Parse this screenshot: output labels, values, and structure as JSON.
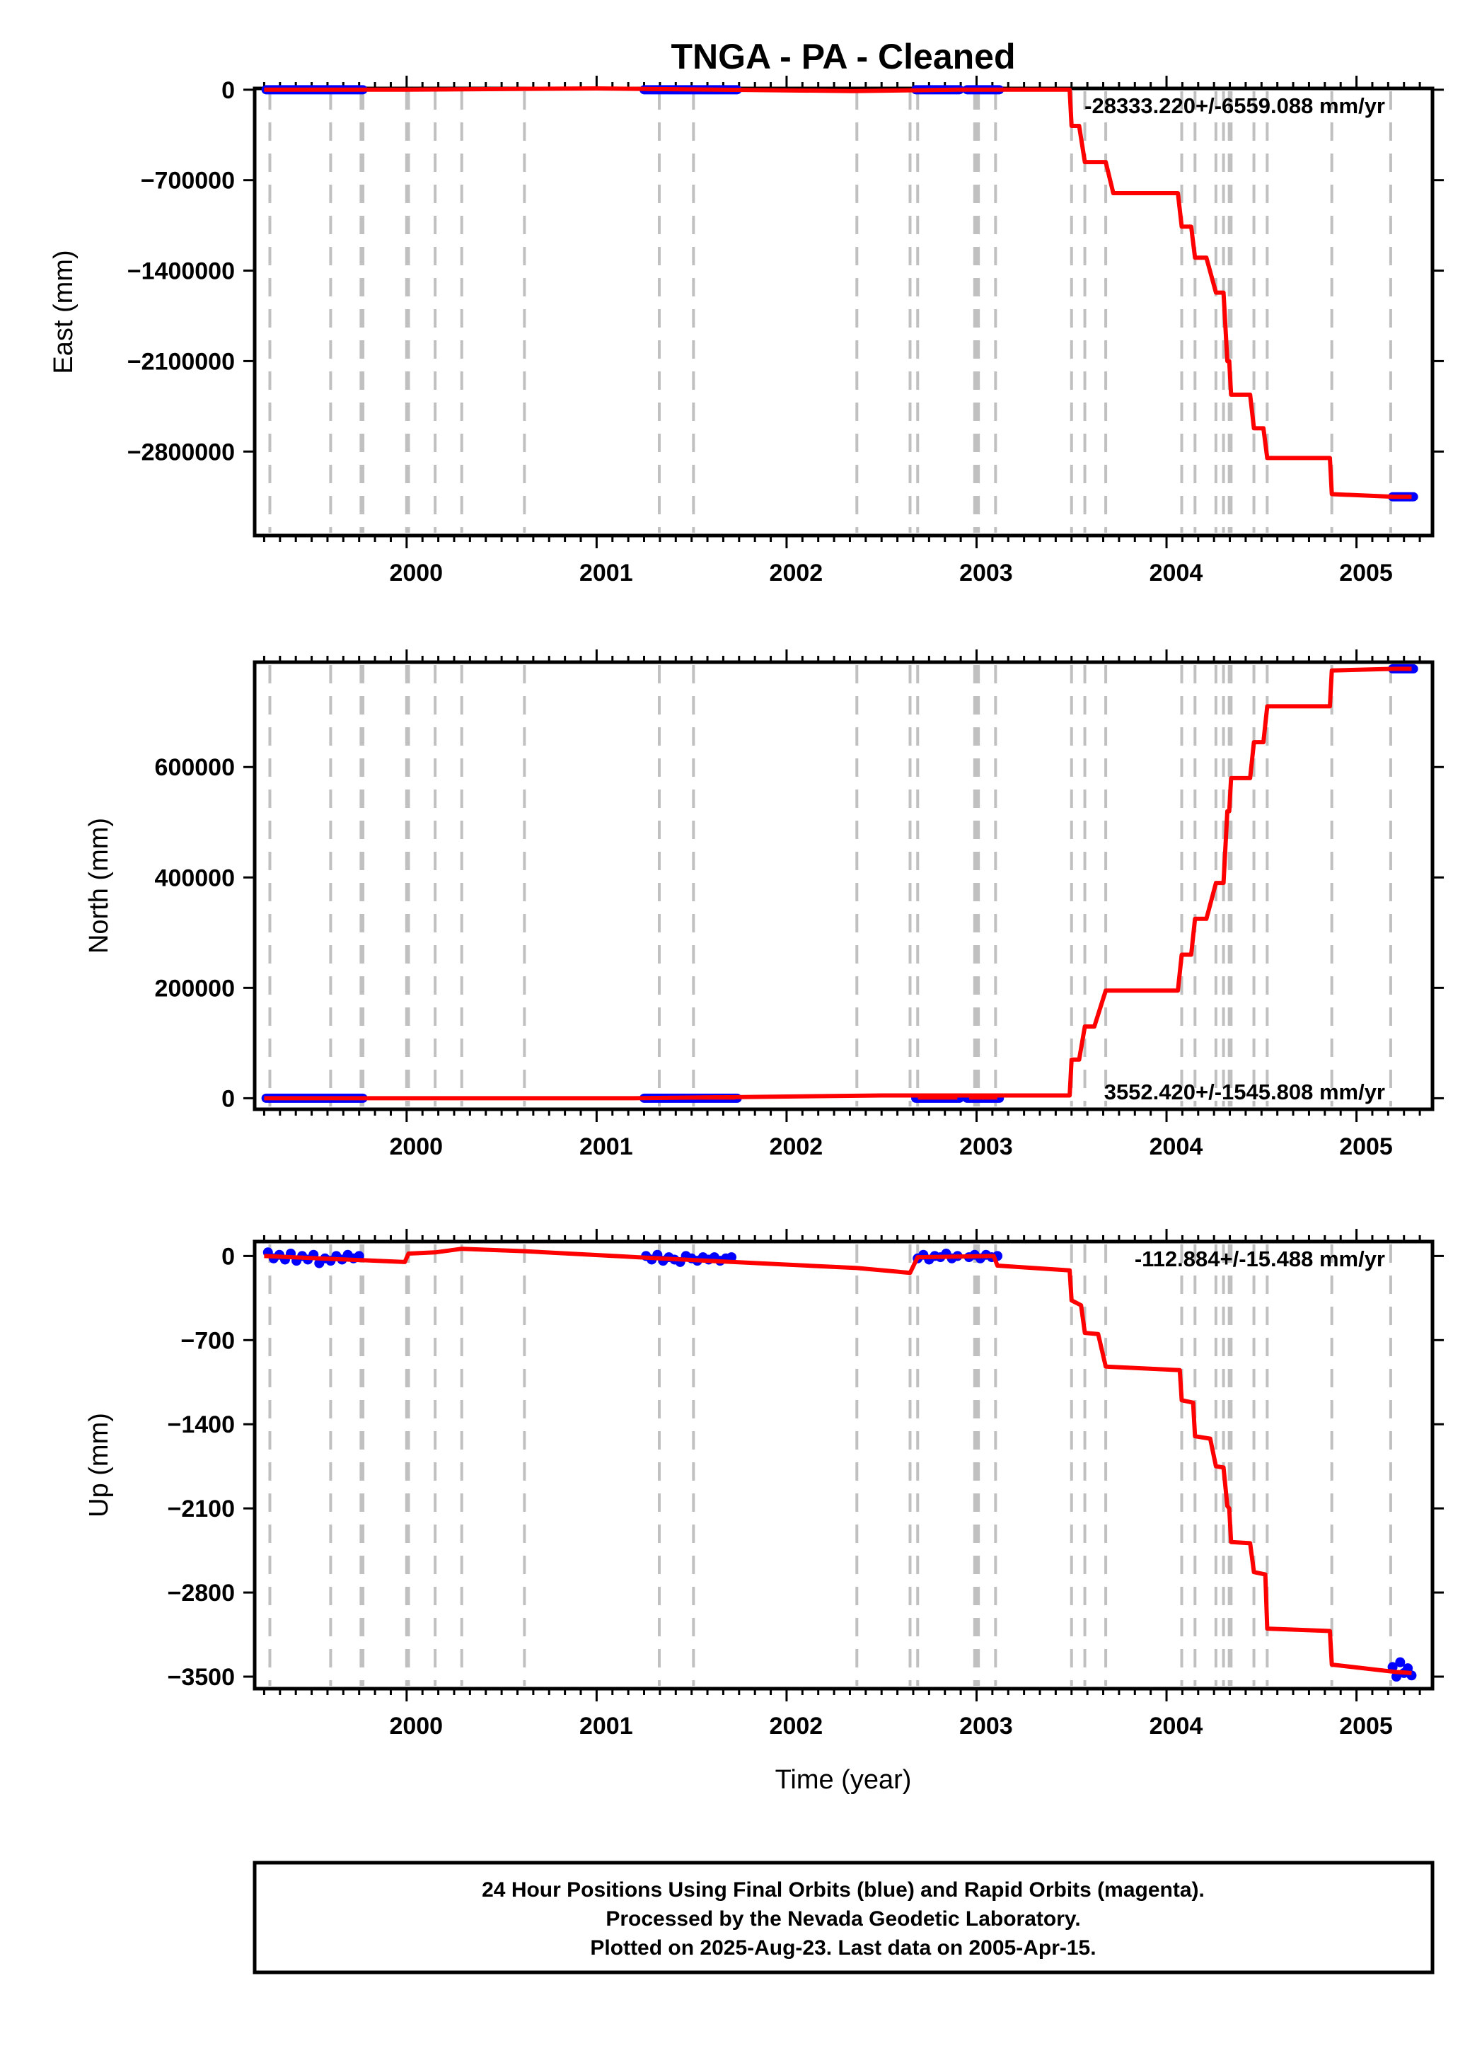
{
  "title": "TNGA  - PA - Cleaned",
  "xlabel": "Time (year)",
  "footer": [
    "24 Hour Positions Using Final Orbits (blue) and Rapid Orbits (magenta).",
    "Processed by the Nevada Geodetic Laboratory.",
    "Plotted on 2025-Aug-23. Last data on 2005-Apr-15."
  ],
  "colors": {
    "model_line": "#ff0000",
    "final_orbits": "#0000ff",
    "rapid_orbits": "#ff00ff",
    "steps": "#c0c0c0",
    "frame": "#000000"
  },
  "chart_data": [
    {
      "type": "line",
      "ylabel": "East (mm)",
      "rate_text": "-28333.220+/-6559.088 mm/yr",
      "xlim": [
        1999.2,
        2005.4
      ],
      "ylim": [
        -3450000,
        10000
      ],
      "yticks": [
        0,
        -700000,
        -1400000,
        -2100000,
        -2800000
      ],
      "ytick_labels": [
        "0",
        "−700000",
        "−1400000",
        "−2100000",
        "−2800000"
      ],
      "xticks": [
        2000,
        2001,
        2002,
        2003,
        2004,
        2005
      ],
      "grid": false,
      "step_epochs": [
        1999.28,
        1999.6,
        1999.76,
        1999.77,
        2000.0,
        2000.01,
        2000.15,
        2000.29,
        2000.62,
        2001.33,
        2001.51,
        2002.37,
        2002.65,
        2002.69,
        2002.99,
        2003.0,
        2003.01,
        2003.1,
        2003.5,
        2003.57,
        2003.68,
        2004.08,
        2004.15,
        2004.26,
        2004.3,
        2004.33,
        2004.34,
        2004.46,
        2004.53,
        2004.87,
        2005.18
      ],
      "series": [
        {
          "role": "model",
          "x": [
            1999.25,
            2000.0,
            2001.0,
            2002.35,
            2002.9,
            2003.3,
            2003.49,
            2003.5,
            2003.54,
            2003.57,
            2003.61,
            2003.68,
            2003.72,
            2004.06,
            2004.08,
            2004.13,
            2004.15,
            2004.21,
            2004.26,
            2004.29,
            2004.3,
            2004.32,
            2004.33,
            2004.34,
            2004.36,
            2004.44,
            2004.46,
            2004.51,
            2004.53,
            2004.86,
            2004.87,
            2005.2,
            2005.29
          ],
          "y": [
            0,
            0,
            10000,
            -10000,
            0,
            0,
            0,
            -280000,
            -280000,
            -560000,
            -560000,
            -560000,
            -800000,
            -800000,
            -1060000,
            -1060000,
            -1300000,
            -1300000,
            -1570000,
            -1570000,
            -1570000,
            -2100000,
            -2100000,
            -2360000,
            -2360000,
            -2360000,
            -2620000,
            -2620000,
            -2850000,
            -2850000,
            -3130000,
            -3150000,
            -3150000
          ]
        },
        {
          "role": "final",
          "segments": [
            [
              1999.26,
              1999.77,
              0
            ],
            [
              2001.25,
              2001.74,
              0
            ],
            [
              2002.68,
              2002.91,
              0
            ],
            [
              2002.95,
              2003.12,
              0
            ],
            [
              2005.19,
              2005.3,
              -3150000
            ]
          ]
        }
      ]
    },
    {
      "type": "line",
      "ylabel": "North (mm)",
      "rate_text": "3552.420+/-1545.808 mm/yr",
      "xlim": [
        1999.2,
        2005.4
      ],
      "ylim": [
        -20000,
        790000
      ],
      "yticks": [
        0,
        200000,
        400000,
        600000
      ],
      "ytick_labels": [
        "0",
        "200000",
        "400000",
        "600000"
      ],
      "xticks": [
        2000,
        2001,
        2002,
        2003,
        2004,
        2005
      ],
      "grid": false,
      "step_epochs": [
        1999.28,
        1999.6,
        1999.76,
        1999.77,
        2000.0,
        2000.01,
        2000.15,
        2000.29,
        2000.62,
        2001.33,
        2001.51,
        2002.37,
        2002.65,
        2002.69,
        2002.99,
        2003.0,
        2003.01,
        2003.1,
        2003.5,
        2003.57,
        2003.68,
        2004.08,
        2004.15,
        2004.26,
        2004.3,
        2004.33,
        2004.34,
        2004.46,
        2004.53,
        2004.87,
        2005.18
      ],
      "series": [
        {
          "role": "model",
          "x": [
            1999.25,
            2000.5,
            2001.2,
            2002.5,
            2003.3,
            2003.49,
            2003.5,
            2003.54,
            2003.57,
            2003.62,
            2003.68,
            2003.72,
            2004.06,
            2004.08,
            2004.13,
            2004.15,
            2004.21,
            2004.26,
            2004.29,
            2004.3,
            2004.32,
            2004.33,
            2004.34,
            2004.38,
            2004.44,
            2004.46,
            2004.51,
            2004.53,
            2004.86,
            2004.87,
            2005.2,
            2005.29
          ],
          "y": [
            0,
            0,
            0,
            5000,
            5000,
            5000,
            70000,
            70000,
            130000,
            130000,
            195000,
            195000,
            195000,
            260000,
            260000,
            325000,
            325000,
            390000,
            390000,
            390000,
            520000,
            520000,
            580000,
            580000,
            580000,
            645000,
            645000,
            710000,
            710000,
            775000,
            778000,
            778000
          ]
        },
        {
          "role": "final",
          "segments": [
            [
              1999.26,
              1999.77,
              0
            ],
            [
              2001.25,
              2001.74,
              0
            ],
            [
              2002.68,
              2002.91,
              0
            ],
            [
              2002.95,
              2003.12,
              0
            ],
            [
              2005.19,
              2005.3,
              778000
            ]
          ]
        }
      ]
    },
    {
      "type": "line",
      "ylabel": "Up (mm)",
      "rate_text": "-112.884+/-15.488 mm/yr",
      "xlim": [
        1999.2,
        2005.4
      ],
      "ylim": [
        -3600,
        120
      ],
      "yticks": [
        0,
        -700,
        -1400,
        -2100,
        -2800,
        -3500
      ],
      "ytick_labels": [
        "0",
        "−700",
        "−1400",
        "−2100",
        "−2800",
        "−3500"
      ],
      "xticks": [
        2000,
        2001,
        2002,
        2003,
        2004,
        2005
      ],
      "grid": false,
      "step_epochs": [
        1999.28,
        1999.6,
        1999.76,
        1999.77,
        2000.0,
        2000.01,
        2000.15,
        2000.29,
        2000.62,
        2001.33,
        2001.51,
        2002.37,
        2002.65,
        2002.69,
        2002.99,
        2003.0,
        2003.01,
        2003.1,
        2003.5,
        2003.57,
        2003.68,
        2004.08,
        2004.15,
        2004.26,
        2004.3,
        2004.33,
        2004.34,
        2004.46,
        2004.53,
        2004.87,
        2005.18
      ],
      "series": [
        {
          "role": "model",
          "x": [
            1999.25,
            1999.99,
            2000.01,
            2000.15,
            2000.29,
            2000.62,
            2001.33,
            2002.37,
            2002.65,
            2002.69,
            2003.09,
            2003.11,
            2003.49,
            2003.5,
            2003.55,
            2003.57,
            2003.64,
            2003.68,
            2004.07,
            2004.08,
            2004.14,
            2004.15,
            2004.23,
            2004.26,
            2004.3,
            2004.32,
            2004.33,
            2004.34,
            2004.44,
            2004.46,
            2004.52,
            2004.53,
            2004.86,
            2004.87,
            2005.2,
            2005.29
          ],
          "y": [
            0,
            -50,
            20,
            30,
            60,
            40,
            -20,
            -100,
            -140,
            -10,
            0,
            -80,
            -120,
            -370,
            -410,
            -640,
            -650,
            -920,
            -950,
            -1200,
            -1220,
            -1500,
            -1520,
            -1750,
            -1760,
            -2080,
            -2100,
            -2380,
            -2390,
            -2630,
            -2650,
            -3100,
            -3120,
            -3400,
            -3460,
            -3470
          ]
        },
        {
          "role": "final_points",
          "x": [
            1999.27,
            1999.3,
            1999.33,
            1999.36,
            1999.39,
            1999.42,
            1999.45,
            1999.48,
            1999.51,
            1999.54,
            1999.57,
            1999.6,
            1999.63,
            1999.66,
            1999.69,
            1999.72,
            1999.75,
            2001.26,
            2001.29,
            2001.32,
            2001.35,
            2001.38,
            2001.41,
            2001.44,
            2001.47,
            2001.5,
            2001.53,
            2001.56,
            2001.59,
            2001.62,
            2001.65,
            2001.68,
            2001.71,
            2002.69,
            2002.72,
            2002.75,
            2002.78,
            2002.81,
            2002.84,
            2002.87,
            2002.9,
            2002.96,
            2002.99,
            2003.02,
            2003.05,
            2003.08,
            2003.11,
            2005.19,
            2005.21,
            2005.23,
            2005.25,
            2005.27,
            2005.29
          ],
          "y": [
            30,
            -20,
            10,
            -30,
            20,
            -40,
            0,
            -30,
            10,
            -60,
            -20,
            -40,
            0,
            -30,
            10,
            -20,
            0,
            0,
            -30,
            10,
            -40,
            -10,
            -30,
            -50,
            0,
            -20,
            -40,
            -10,
            -30,
            -10,
            -40,
            -20,
            -10,
            -20,
            10,
            -30,
            0,
            -10,
            20,
            -20,
            0,
            -10,
            10,
            -20,
            10,
            -10,
            0,
            -3420,
            -3500,
            -3380,
            -3470,
            -3430,
            -3490
          ]
        }
      ]
    }
  ]
}
